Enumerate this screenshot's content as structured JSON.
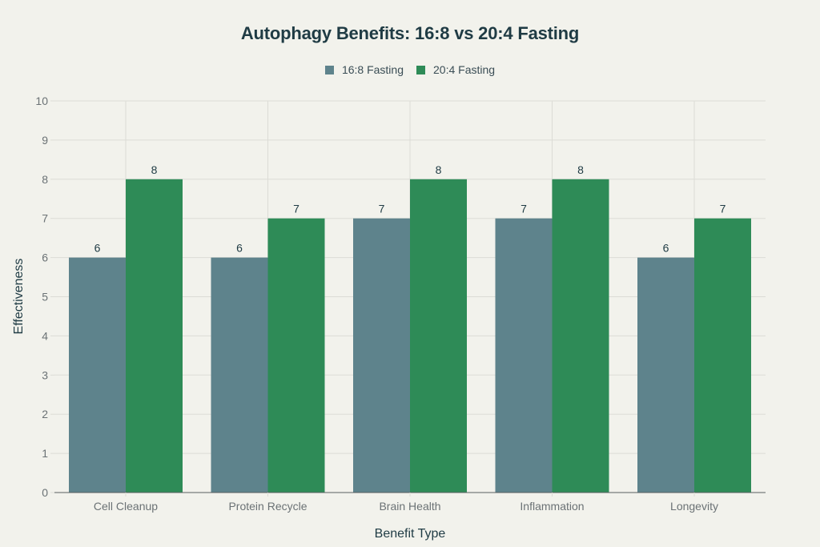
{
  "chart_data": {
    "type": "bar",
    "title": "Autophagy Benefits: 16:8 vs 20:4 Fasting",
    "xlabel": "Benefit Type",
    "ylabel": "Effectiveness",
    "categories": [
      "Cell Cleanup",
      "Protein Recycle",
      "Brain Health",
      "Inflammation",
      "Longevity"
    ],
    "series": [
      {
        "name": "16:8 Fasting",
        "color": "#5E838C",
        "values": [
          6,
          6,
          7,
          7,
          6
        ]
      },
      {
        "name": "20:4 Fasting",
        "color": "#2E8B57",
        "values": [
          8,
          7,
          8,
          8,
          7
        ]
      }
    ],
    "ylim": [
      0,
      10
    ],
    "yticks": [
      0,
      1,
      2,
      3,
      4,
      5,
      6,
      7,
      8,
      9,
      10
    ],
    "grid": true,
    "legend_position": "top-center",
    "data_labels": true
  }
}
